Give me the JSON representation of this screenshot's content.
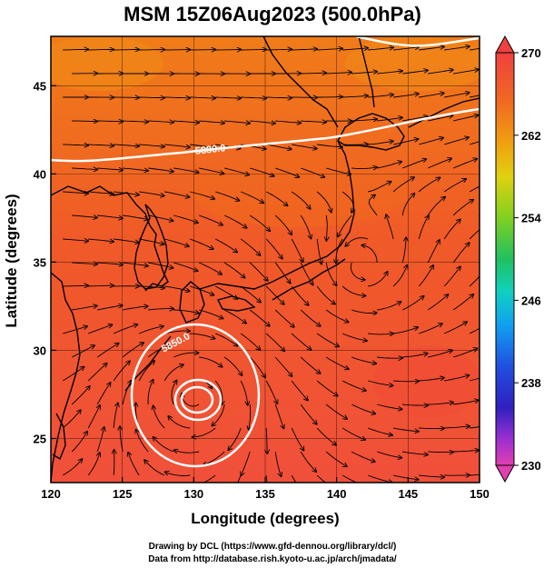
{
  "title": "MSM 15Z06Aug2023 (500.0hPa)",
  "xaxis": {
    "label": "Longitude (degrees)",
    "range": [
      120,
      150
    ],
    "ticks": [
      "120",
      "125",
      "130",
      "135",
      "140",
      "145",
      "150"
    ]
  },
  "yaxis": {
    "label": "Latitude  (degrees)",
    "range": [
      22.5,
      47.8
    ],
    "ticks": [
      "25",
      "30",
      "35",
      "40",
      "45"
    ]
  },
  "colorbar": {
    "ticks": [
      "270",
      "262",
      "254",
      "246",
      "238",
      "230"
    ],
    "range": [
      230,
      270
    ],
    "colors": [
      "#e040b0",
      "#b030d0",
      "#3020c0",
      "#2050e0",
      "#10a0f0",
      "#10d0c0",
      "#20c060",
      "#60d020",
      "#b0d010",
      "#f0c010",
      "#f08010",
      "#f04030"
    ]
  },
  "contours": [
    {
      "label": "5880.0"
    },
    {
      "label": "5850.0"
    }
  ],
  "credits": {
    "line1": "Drawing by DCL (https://www.gfd-dennou.org/library/dcl/)",
    "line2": "Data from http://database.rish.kyoto-u.ac.jp/arch/jmadata/"
  },
  "colors": {
    "field_warm": "#f05030",
    "field_mid": "#f07a20",
    "field_north": "#f08820",
    "contour": "#ffffff",
    "coast": "#000000"
  }
}
